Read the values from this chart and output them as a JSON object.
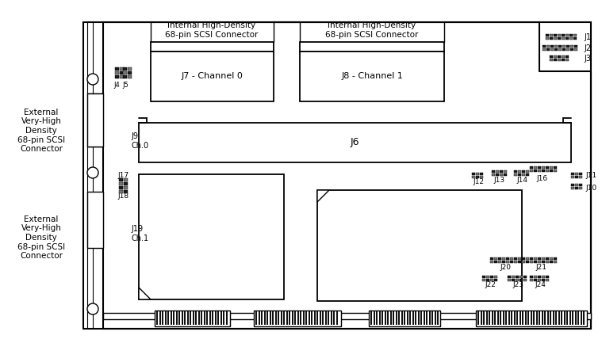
{
  "bg_color": "#ffffff",
  "line_color": "#000000",
  "text_color": "#000000",
  "ext_label1": "External\nVery-High\nDensity\n68-pin SCSI\nConnector",
  "ext_label2": "External\nVery-High\nDensity\n68-pin SCSI\nConnector",
  "int_label1": "Internal High-Density\n68-pin SCSI Connector",
  "int_label2": "Internal High-Density\n68-pin SCSI Connector",
  "J7_label": "J7 - Channel 0",
  "J8_label": "J8 - Channel 1",
  "J6_label": "J6",
  "J9_label": "J9\nCh.0",
  "J19_label": "J19\nCh.1"
}
